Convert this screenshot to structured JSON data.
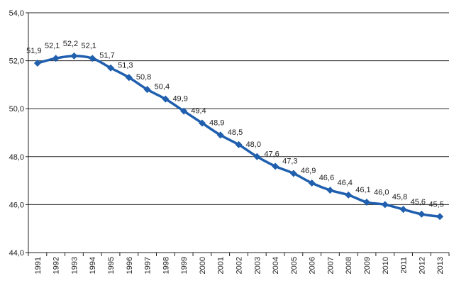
{
  "chart_data": {
    "type": "line",
    "title": "",
    "xlabel": "",
    "ylabel": "",
    "x": [
      "1991",
      "1992",
      "1993",
      "1994",
      "1995",
      "1996",
      "1997",
      "1998",
      "1999",
      "2000",
      "2001",
      "2002",
      "2003",
      "2004",
      "2005",
      "2006",
      "2007",
      "2008",
      "2009",
      "2010",
      "2011",
      "2012",
      "2013"
    ],
    "series": [
      {
        "values": [
          51.9,
          52.1,
          52.2,
          52.1,
          51.7,
          51.3,
          50.8,
          50.4,
          49.9,
          49.4,
          48.9,
          48.5,
          48.0,
          47.6,
          47.3,
          46.9,
          46.6,
          46.4,
          46.1,
          46.0,
          45.8,
          45.6,
          45.5
        ],
        "labels": [
          "51,9",
          "52,1",
          "52,2",
          "52,1",
          "51,7",
          "51,3",
          "50,8",
          "50,4",
          "49,9",
          "49,4",
          "48,9",
          "48,5",
          "48,0",
          "47,6",
          "47,3",
          "46,9",
          "46,6",
          "46,4",
          "46,1",
          "46,0",
          "45,8",
          "45,6",
          "45,5"
        ],
        "color": "#1f5fae",
        "marker": "diamond"
      }
    ],
    "ylim": [
      44.0,
      54.0
    ],
    "yticks": [
      44.0,
      46.0,
      48.0,
      50.0,
      52.0,
      54.0
    ],
    "ytick_labels": [
      "44,0",
      "46,0",
      "48,0",
      "50,0",
      "52,0",
      "54,0"
    ],
    "grid": "horizontal",
    "x_tick_rotation": "vertical",
    "legend": "none"
  }
}
